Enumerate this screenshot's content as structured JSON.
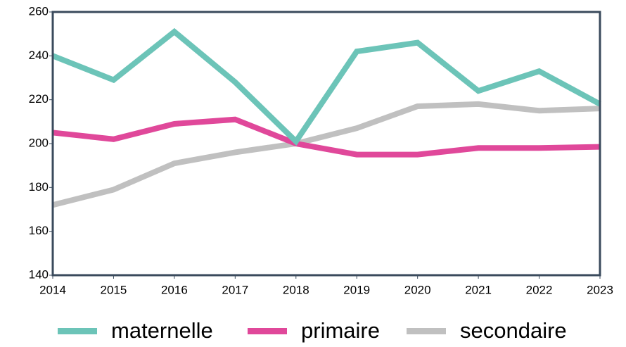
{
  "chart_data": {
    "type": "line",
    "x": [
      2014,
      2015,
      2016,
      2017,
      2018,
      2019,
      2020,
      2021,
      2022,
      2023
    ],
    "xlim": [
      2014,
      2023
    ],
    "xticks": [
      2014,
      2015,
      2016,
      2017,
      2018,
      2019,
      2020,
      2021,
      2022,
      2023
    ],
    "ylim": [
      140,
      260
    ],
    "yticks": [
      140,
      160,
      180,
      200,
      220,
      240,
      260
    ],
    "legend": "bottom",
    "series": [
      {
        "name": "maternelle",
        "color": "#6cc4b8",
        "values": [
          240,
          229,
          251,
          228,
          201,
          242,
          246,
          224,
          233,
          218
        ]
      },
      {
        "name": "primaire",
        "color": "#e0489a",
        "values": [
          205,
          202,
          209,
          211,
          200,
          195,
          195,
          198,
          198,
          198.5
        ]
      },
      {
        "name": "secondaire",
        "color": "#c0c0c0",
        "values": [
          172,
          179,
          191,
          196,
          200,
          207,
          217,
          218,
          215,
          216
        ]
      }
    ]
  }
}
